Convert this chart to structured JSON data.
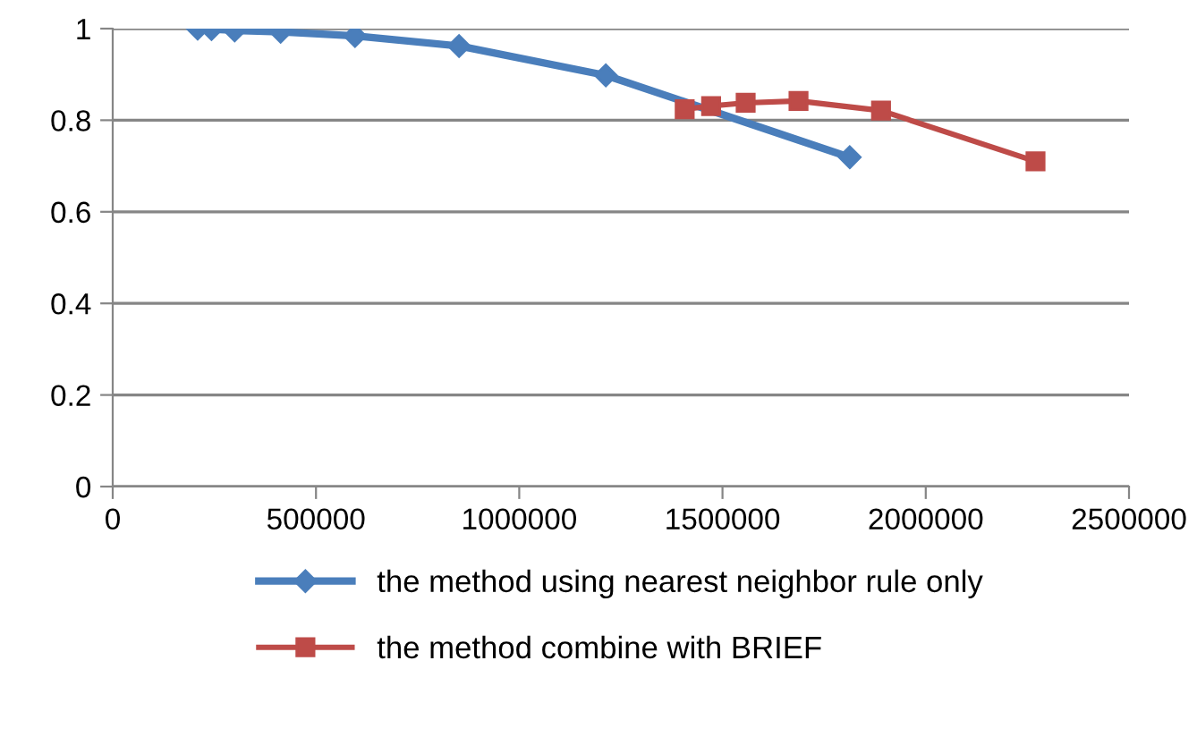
{
  "chart_data": {
    "type": "line",
    "xlim": [
      0,
      2500000
    ],
    "xticks": [
      0,
      500000,
      1000000,
      1500000,
      2000000,
      2500000
    ],
    "ylim": [
      0,
      1
    ],
    "yticks": [
      0,
      0.2,
      0.4,
      0.6,
      0.8,
      1
    ],
    "grid": "y",
    "legend": "bottom",
    "line_style": "solid",
    "series": [
      {
        "name": "the method using nearest neighbor rule only",
        "color": "#4a7ebb",
        "marker": "diamond",
        "x": [
          209000,
          243000,
          300000,
          413000,
          596000,
          852000,
          1213000,
          1813000
        ],
        "values": [
          1.0,
          0.999,
          0.996,
          0.993,
          0.984,
          0.962,
          0.898,
          0.719
        ]
      },
      {
        "name": "the method combine with BRIEF",
        "color": "#be4b48",
        "marker": "square",
        "x": [
          1407000,
          1472000,
          1557000,
          1687000,
          1890000,
          2270000
        ],
        "values": [
          0.824,
          0.831,
          0.838,
          0.842,
          0.821,
          0.71
        ]
      }
    ]
  }
}
